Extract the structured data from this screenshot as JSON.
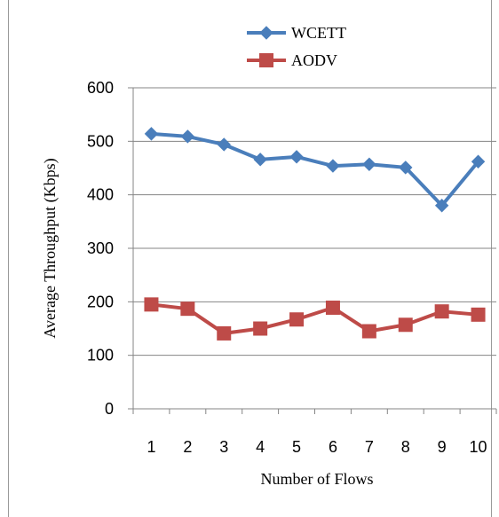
{
  "chart_data": {
    "type": "line",
    "categories": [
      "1",
      "2",
      "3",
      "4",
      "5",
      "6",
      "7",
      "8",
      "9",
      "10"
    ],
    "series": [
      {
        "name": "WCETT",
        "color": "#4A7EBB",
        "marker": "diamond",
        "values": [
          514,
          509,
          494,
          466,
          471,
          454,
          457,
          451,
          380,
          462
        ]
      },
      {
        "name": "AODV",
        "color": "#BE4B48",
        "marker": "square",
        "values": [
          195,
          187,
          141,
          150,
          167,
          189,
          145,
          157,
          182,
          176
        ]
      }
    ],
    "xlabel": "Number of Flows",
    "ylabel": "Average Throughput (Kbps)",
    "ylim": [
      0,
      600
    ],
    "yticks": [
      "0",
      "100",
      "200",
      "300",
      "400",
      "500",
      "600"
    ],
    "grid": true,
    "legend_position": "top-center"
  }
}
